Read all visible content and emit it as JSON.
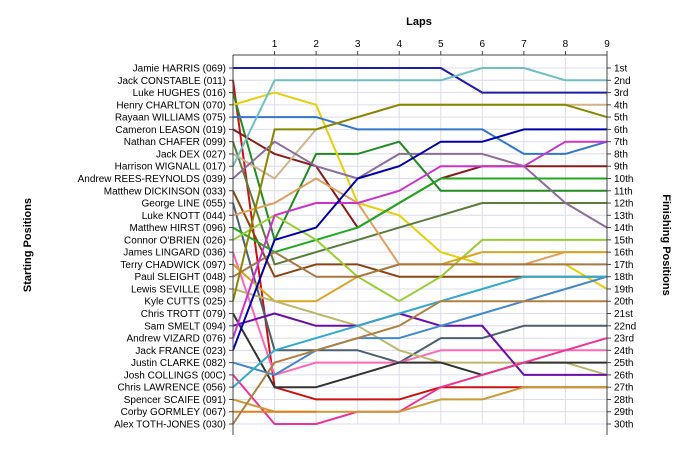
{
  "chart_data": {
    "type": "line",
    "title": "",
    "xlabel": "Laps",
    "ylabel_left": "Starting Positions",
    "ylabel_right": "Finishing Positions",
    "laps": [
      1,
      2,
      3,
      4,
      5,
      6,
      7,
      8,
      9
    ],
    "starting_positions": [
      "Jamie HARRIS (069)",
      "Jack CONSTABLE (011)",
      "Luke HUGHES (016)",
      "Henry CHARLTON (070)",
      "Rayaan WILLIAMS (075)",
      "Cameron LEASON (019)",
      "Nathan CHAFER (099)",
      "Jack DEX (027)",
      "Harrison WIGNALL (017)",
      "Andrew REES-REYNOLDS (039)",
      "Matthew DICKINSON (033)",
      "George LINE (055)",
      "Luke KNOTT (044)",
      "Matthew HIRST (096)",
      "Connor O'BRIEN (026)",
      "James LINGARD (036)",
      "Terry CHADWICK (097)",
      "Paul SLEIGHT (048)",
      "Lewis SEVILLE (098)",
      "Kyle CUTTS (025)",
      "Chris TROTT (079)",
      "Sam SMELT (094)",
      "Andrew VIZARD (076)",
      "Jack FRANCE (023)",
      "Justin CLARKE (082)",
      "Josh COLLINGS (00C)",
      "Chris LAWRENCE (056)",
      "Spencer SCAIFE (091)",
      "Corby GORMLEY (067)",
      "Alex TOTH-JONES (030)"
    ],
    "finishing_positions": [
      "1st",
      "2nd",
      "3rd",
      "4th",
      "5th",
      "6th",
      "7th",
      "8th",
      "9th",
      "10th",
      "11th",
      "12th",
      "13th",
      "14th",
      "15th",
      "16th",
      "17th",
      "18th",
      "19th",
      "20th",
      "21st",
      "22nd",
      "23rd",
      "24th",
      "25th",
      "26th",
      "27th",
      "28th",
      "29th",
      "30th"
    ],
    "position_range": [
      1,
      30
    ],
    "grid": true,
    "series": [
      {
        "start": 1,
        "color": "#1c1ca8",
        "positions": [
          1,
          1,
          1,
          1,
          1,
          3,
          3,
          3,
          3
        ]
      },
      {
        "start": 2,
        "color": "#cc1111",
        "positions": [
          27,
          28,
          28,
          28,
          27,
          27,
          27,
          27,
          27
        ]
      },
      {
        "start": 3,
        "color": "#228b22",
        "positions": [
          15,
          8,
          8,
          7,
          11,
          11,
          11,
          11,
          11
        ]
      },
      {
        "start": 4,
        "color": "#e6d00a",
        "positions": [
          3,
          4,
          12,
          13,
          16,
          17,
          17,
          17,
          19
        ]
      },
      {
        "start": 5,
        "color": "#3377cc",
        "positions": [
          5,
          5,
          6,
          6,
          6,
          6,
          8,
          8,
          7
        ]
      },
      {
        "start": 6,
        "color": "#8b1a1a",
        "positions": [
          8,
          9,
          14,
          12,
          10,
          9,
          9,
          9,
          9
        ]
      },
      {
        "start": 7,
        "color": "#5a7d3a",
        "positions": [
          17,
          16,
          15,
          14,
          13,
          12,
          12,
          12,
          12
        ]
      },
      {
        "start": 8,
        "color": "#d2b48c",
        "positions": [
          10,
          6,
          5,
          4,
          4,
          4,
          4,
          4,
          4
        ]
      },
      {
        "start": 9,
        "color": "#70c0c0",
        "positions": [
          2,
          2,
          2,
          2,
          2,
          1,
          1,
          2,
          2
        ]
      },
      {
        "start": 10,
        "color": "#8c6d9c",
        "positions": [
          7,
          9,
          10,
          8,
          8,
          8,
          9,
          12,
          14
        ]
      },
      {
        "start": 11,
        "color": "#8b4513",
        "positions": [
          18,
          17,
          17,
          18,
          18,
          18,
          18,
          18,
          18
        ]
      },
      {
        "start": 12,
        "color": "#4c6070",
        "positions": [
          24,
          24,
          24,
          25,
          23,
          23,
          22,
          22,
          22
        ]
      },
      {
        "start": 13,
        "color": "#e0a060",
        "positions": [
          12,
          10,
          12,
          17,
          17,
          17,
          17,
          16,
          16
        ]
      },
      {
        "start": 14,
        "color": "#20aa20",
        "positions": [
          16,
          15,
          14,
          12,
          10,
          10,
          10,
          10,
          10
        ]
      },
      {
        "start": 15,
        "color": "#9acd32",
        "positions": [
          13,
          15,
          18,
          20,
          18,
          15,
          15,
          15,
          15
        ]
      },
      {
        "start": 16,
        "color": "#ff69b4",
        "positions": [
          26,
          25,
          25,
          25,
          24,
          24,
          24,
          24,
          24
        ]
      },
      {
        "start": 17,
        "color": "#daa520",
        "positions": [
          20,
          20,
          18,
          17,
          17,
          16,
          16,
          16,
          16
        ]
      },
      {
        "start": 18,
        "color": "#aa7744",
        "positions": [
          16,
          18,
          18,
          17,
          17,
          17,
          17,
          17,
          17
        ]
      },
      {
        "start": 19,
        "color": "#bdb76b",
        "positions": [
          20,
          21,
          22,
          24,
          25,
          25,
          25,
          25,
          26
        ]
      },
      {
        "start": 20,
        "color": "#888800",
        "positions": [
          6,
          6,
          5,
          4,
          4,
          4,
          4,
          4,
          5
        ]
      },
      {
        "start": 21,
        "color": "#333333",
        "positions": [
          27,
          27,
          26,
          25,
          25,
          26,
          25,
          25,
          25
        ]
      },
      {
        "start": 22,
        "color": "#6a0dad",
        "positions": [
          21,
          22,
          22,
          21,
          22,
          22,
          26,
          26,
          26
        ]
      },
      {
        "start": 23,
        "color": "#cc33cc",
        "positions": [
          13,
          12,
          12,
          11,
          9,
          9,
          9,
          7,
          7
        ]
      },
      {
        "start": 24,
        "color": "#0000aa",
        "positions": [
          15,
          14,
          10,
          9,
          7,
          7,
          6,
          6,
          6
        ]
      },
      {
        "start": 25,
        "color": "#4488cc",
        "positions": [
          26,
          24,
          23,
          23,
          22,
          21,
          20,
          19,
          18
        ]
      },
      {
        "start": 26,
        "color": "#ee3399",
        "positions": [
          30,
          30,
          29,
          29,
          27,
          26,
          25,
          24,
          23
        ]
      },
      {
        "start": 27,
        "color": "#33aacc",
        "positions": [
          24,
          23,
          22,
          21,
          20,
          19,
          18,
          18,
          18
        ]
      },
      {
        "start": 28,
        "color": "#cc9933",
        "positions": [
          29,
          29,
          29,
          29,
          28,
          28,
          27,
          27,
          27
        ]
      },
      {
        "start": 29,
        "color": "#e08020",
        "positions": [
          29,
          29,
          null,
          null,
          null,
          null,
          null,
          null,
          null
        ]
      },
      {
        "start": 30,
        "color": "#b08040",
        "positions": [
          25,
          24,
          23,
          22,
          20,
          20,
          20,
          20,
          20
        ]
      }
    ]
  }
}
